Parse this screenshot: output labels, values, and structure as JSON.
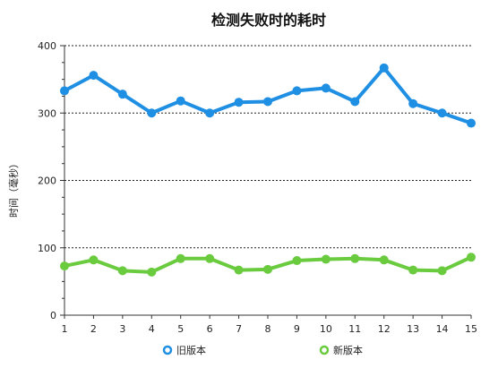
{
  "chart_data": {
    "type": "line",
    "title": "检测失败时的耗时",
    "xlabel": "",
    "ylabel": "时间（毫秒）",
    "x": [
      1,
      2,
      3,
      4,
      5,
      6,
      7,
      8,
      9,
      10,
      11,
      12,
      13,
      14,
      15
    ],
    "ylim": [
      0,
      400
    ],
    "yticks": [
      0,
      100,
      200,
      300,
      400
    ],
    "grid": "horizontal-dotted",
    "legend_position": "bottom",
    "series": [
      {
        "name": "旧版本",
        "color": "#1f8fe3",
        "values": [
          333,
          356,
          328,
          300,
          318,
          300,
          316,
          317,
          333,
          337,
          317,
          367,
          314,
          300,
          285
        ]
      },
      {
        "name": "新版本",
        "color": "#6acb3f",
        "values": [
          73,
          82,
          66,
          64,
          84,
          84,
          67,
          68,
          81,
          83,
          84,
          82,
          67,
          66,
          86
        ]
      }
    ]
  }
}
